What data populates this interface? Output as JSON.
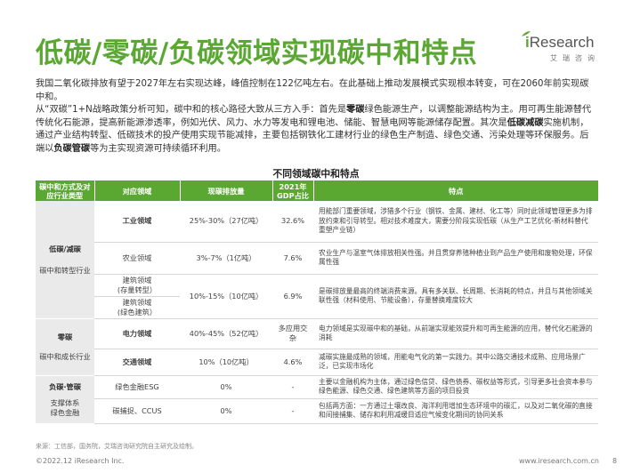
{
  "page": {
    "title": "低碳/零碳/负碳领域实现碳中和特点",
    "logo_i": "i",
    "logo_word": "Research",
    "logo_sub": "艾瑞咨询"
  },
  "intro": {
    "p1": "我国二氧化碳排放有望于2027年左右实现达峰，峰值控制在122亿吨左右。在此基础上推动发展模式实现根本转变，可在2060年前实现碳中和。",
    "p2_a": "从“双碳”1+N战略政策分析可知，碳中和的核心路径大致从三方入手：首先是",
    "p2_b1": "零碳",
    "p2_c": "绿色能源生产，以调整能源结构为主。用可再生能源替代传统化石能源，提高新能源渗透率，例如光伏、风力、水力等发电和锂电池、储能、智慧电网等能源储存配置。其次是",
    "p2_b2": "低碳减碳",
    "p2_d": "实施机制，通过产业结构转型、低碳技术的投产使用实现节能减排，主要包括钢铁化工建材行业的绿色生产制造、绿色交通、污染处理等环保服务。后端以",
    "p2_b3": "负碳管碳",
    "p2_e": "等为主实现资源可持续循环利用。"
  },
  "table": {
    "title": "不同领域碳中和特点",
    "headers": [
      "碳中和方式及对应行业类型",
      "对应领域",
      "现碳排放量",
      "2021年GDP占比",
      "特点"
    ],
    "categories": [
      {
        "name": "低碳/减碳",
        "sub": "碳中和转型行业"
      },
      {
        "name": "零碳",
        "sub": "碳中和成长行业"
      },
      {
        "name": "负碳·管碳",
        "sub": "支撑体系\n绿色金融"
      }
    ],
    "rows": [
      {
        "field": "工业领域",
        "emission": "25%-30%（27亿吨）",
        "gdp": "32.6%",
        "desc": "用能部门重要领域，涉猎多个行业（钢铁、金属、建材、化工等）同时此领域管理更多为排放约束和引导转型。相对技术难度大，需要分阶段实现低碳（从生产工艺优化-新材料替代重塑产业链）"
      },
      {
        "field": "农业领域",
        "emission": "3%-7%（1亿吨）",
        "gdp": "7.6%",
        "desc": "农业生产与温室气体排放相关性强。并且贯穿养殖种植业到产品生产使用和废物处理，环保属性强"
      },
      {
        "field": "建筑领域\n(存量转型）",
        "emission": "10%-15%（10亿吨）",
        "gdp": "6.9%",
        "desc": "是碳排放量最高的终端消费来源。具有多关联、长周期、长消耗的特点，并且与其他领域关联性强（材料使用、节能设备），存量替换难度较大"
      },
      {
        "field": "建筑领域\n(绿色建筑）",
        "emission": "",
        "gdp": "",
        "desc": ""
      },
      {
        "field": "电力领域",
        "emission": "40%-45%（52亿吨）",
        "gdp": "多应用交杂",
        "desc": "电力领域是实现碳中和的基础，从前端实现能效提升和可再生能源的应用，替代化石能源的消耗"
      },
      {
        "field": "交通领域",
        "emission": "10%（10亿吨）",
        "gdp": "4.6%",
        "desc": "减碳实施最成熟的领域，用能电气化的第一实践力。其中公路交通技术成熟、应用场景广泛，已实现市场化"
      },
      {
        "field": "绿色金融ESG",
        "emission": "0%",
        "gdp": "-",
        "desc": "主要以金融机构为主体，通过绿色信贷、绿色债券、碳权益等形式，引导更多社会资本参与绿色能源、绿色交通、绿色建筑等方面的项目投资"
      },
      {
        "field": "碳捕捉、CCUS",
        "emission": "0%",
        "gdp": "-",
        "desc": "包括两方面：一方通过土壤改良、海洋利用增加生态环境中的碳汇，以及对二氧化碳的直接和间接捕集、储存和利用减缓目适应气候变化期间的协同关系"
      }
    ]
  },
  "source": "来源：工信部，国务院，艾瑞咨询研究院自主研究及绘制。",
  "footer": {
    "copyright": "©2022.12 iResearch Inc.",
    "url": "www.iresearch.com.cn",
    "page": "8"
  },
  "colors": {
    "accent": "#5aa832",
    "header_text": "#ffffff",
    "category_bg": "#eaeaea"
  }
}
